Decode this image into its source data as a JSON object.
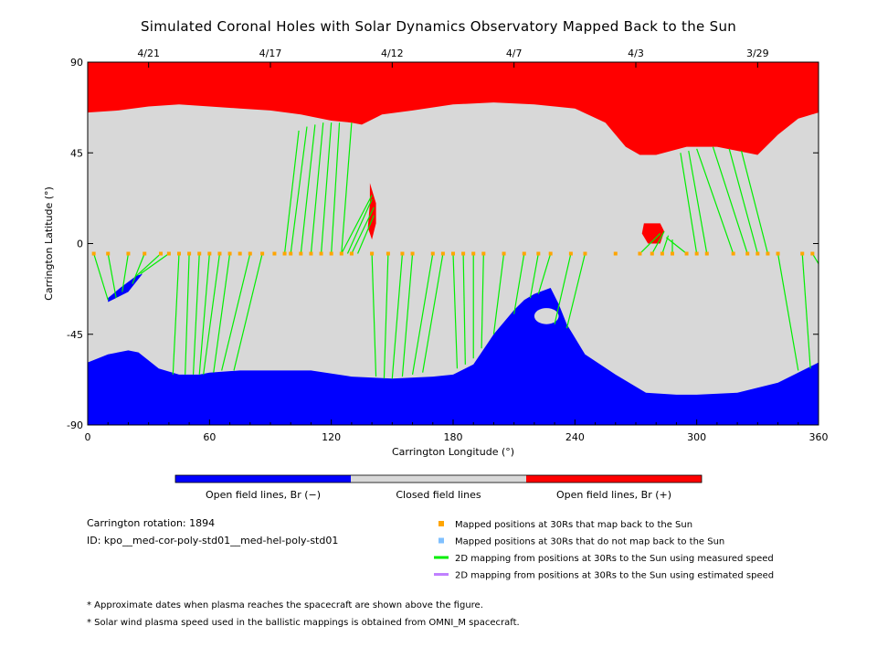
{
  "title": "Simulated Coronal Holes with Solar Dynamics Observatory Mapped Back to the Sun",
  "chart_data": {
    "type": "map",
    "xlabel": "Carrington Longitude (°)",
    "ylabel": "Carrington Latitude (°)",
    "xlim": [
      0,
      360
    ],
    "ylim": [
      -90,
      90
    ],
    "x_ticks": [
      "0",
      "60",
      "120",
      "180",
      "240",
      "300",
      "360"
    ],
    "y_ticks": [
      "90",
      "45",
      "0",
      "-45",
      "-90"
    ],
    "top_dates": [
      {
        "label": "4/21",
        "lon": 30
      },
      {
        "label": "4/17",
        "lon": 90
      },
      {
        "label": "4/12",
        "lon": 150
      },
      {
        "label": "4/7",
        "lon": 210
      },
      {
        "label": "4/3",
        "lon": 270
      },
      {
        "label": "3/29",
        "lon": 330
      }
    ],
    "north_boundary": [
      [
        0,
        65
      ],
      [
        15,
        66
      ],
      [
        30,
        68
      ],
      [
        45,
        69
      ],
      [
        60,
        68
      ],
      [
        75,
        67
      ],
      [
        90,
        66
      ],
      [
        105,
        64
      ],
      [
        120,
        61
      ],
      [
        130,
        60
      ],
      [
        135,
        59
      ],
      [
        145,
        64
      ],
      [
        160,
        66
      ],
      [
        180,
        69
      ],
      [
        200,
        70
      ],
      [
        220,
        69
      ],
      [
        240,
        67
      ],
      [
        255,
        60
      ],
      [
        265,
        48
      ],
      [
        272,
        44
      ],
      [
        280,
        44
      ],
      [
        295,
        48
      ],
      [
        310,
        48
      ],
      [
        325,
        45
      ],
      [
        330,
        44
      ],
      [
        340,
        54
      ],
      [
        350,
        62
      ],
      [
        360,
        65
      ]
    ],
    "south_boundary": [
      [
        0,
        -59
      ],
      [
        10,
        -55
      ],
      [
        20,
        -53
      ],
      [
        25,
        -54
      ],
      [
        35,
        -62
      ],
      [
        45,
        -65
      ],
      [
        55,
        -65
      ],
      [
        60,
        -64
      ],
      [
        75,
        -63
      ],
      [
        90,
        -63
      ],
      [
        110,
        -63
      ],
      [
        130,
        -66
      ],
      [
        150,
        -67
      ],
      [
        170,
        -66
      ],
      [
        180,
        -65
      ],
      [
        190,
        -60
      ],
      [
        200,
        -45
      ],
      [
        210,
        -33
      ],
      [
        215,
        -28
      ],
      [
        220,
        -25
      ],
      [
        228,
        -22
      ],
      [
        232,
        -30
      ],
      [
        236,
        -40
      ],
      [
        245,
        -55
      ],
      [
        260,
        -65
      ],
      [
        275,
        -74
      ],
      [
        290,
        -75
      ],
      [
        300,
        -75
      ],
      [
        320,
        -74
      ],
      [
        340,
        -69
      ],
      [
        360,
        -59
      ]
    ],
    "open_positive_islands": [
      {
        "points": [
          [
            139,
            30
          ],
          [
            142,
            20
          ],
          [
            142,
            10
          ],
          [
            140,
            2
          ],
          [
            138,
            8
          ],
          [
            139,
            20
          ]
        ]
      },
      {
        "points": [
          [
            274,
            10
          ],
          [
            282,
            10
          ],
          [
            284,
            6
          ],
          [
            282,
            0
          ],
          [
            276,
            0
          ],
          [
            273,
            5
          ]
        ]
      }
    ],
    "open_negative_islands": [
      {
        "points": [
          [
            10,
            -29
          ],
          [
            20,
            -24
          ],
          [
            27,
            -15
          ],
          [
            24,
            -16
          ],
          [
            16,
            -22
          ],
          [
            10,
            -27
          ]
        ]
      }
    ],
    "closed_holes_in_south": [
      {
        "center": [
          226,
          -36
        ],
        "rx": 6,
        "ry": 4
      }
    ],
    "mapped_30rs": {
      "longitudes": [
        3,
        10,
        20,
        28,
        36,
        40,
        45,
        50,
        55,
        60,
        65,
        70,
        75,
        80,
        86,
        92,
        97,
        100,
        105,
        110,
        115,
        120,
        125,
        130,
        140,
        148,
        155,
        160,
        170,
        175,
        180,
        185,
        190,
        195,
        205,
        215,
        222,
        228,
        238,
        245,
        260,
        272,
        278,
        283,
        288,
        295,
        300,
        305,
        318,
        325,
        330,
        335,
        340,
        352,
        357
      ],
      "latitude": -5,
      "color": "#ffa500"
    },
    "measured_speed_mappings": [
      [
        [
          3,
          -5
        ],
        [
          10,
          -28
        ]
      ],
      [
        [
          10,
          -5
        ],
        [
          14,
          -27
        ]
      ],
      [
        [
          20,
          -5
        ],
        [
          17,
          -24
        ]
      ],
      [
        [
          28,
          -5
        ],
        [
          22,
          -20
        ]
      ],
      [
        [
          36,
          -5
        ],
        [
          24,
          -16
        ]
      ],
      [
        [
          40,
          -5
        ],
        [
          26,
          -15
        ]
      ],
      [
        [
          45,
          -5
        ],
        [
          42,
          -65
        ]
      ],
      [
        [
          50,
          -5
        ],
        [
          48,
          -65
        ]
      ],
      [
        [
          55,
          -5
        ],
        [
          52,
          -65
        ]
      ],
      [
        [
          60,
          -5
        ],
        [
          55,
          -65
        ]
      ],
      [
        [
          65,
          -5
        ],
        [
          57,
          -65
        ]
      ],
      [
        [
          70,
          -5
        ],
        [
          62,
          -64
        ]
      ],
      [
        [
          80,
          -5
        ],
        [
          66,
          -63
        ]
      ],
      [
        [
          86,
          -5
        ],
        [
          72,
          -63
        ]
      ],
      [
        [
          97,
          -5
        ],
        [
          104,
          56
        ]
      ],
      [
        [
          100,
          -5
        ],
        [
          108,
          58
        ]
      ],
      [
        [
          105,
          -5
        ],
        [
          112,
          59
        ]
      ],
      [
        [
          110,
          -5
        ],
        [
          116,
          60
        ]
      ],
      [
        [
          115,
          -5
        ],
        [
          120,
          60
        ]
      ],
      [
        [
          120,
          -5
        ],
        [
          124,
          60
        ]
      ],
      [
        [
          125,
          -5
        ],
        [
          130,
          60
        ]
      ],
      [
        [
          125,
          -5
        ],
        [
          140,
          24
        ]
      ],
      [
        [
          128,
          -5
        ],
        [
          140,
          22
        ]
      ],
      [
        [
          130,
          -5
        ],
        [
          141,
          18
        ]
      ],
      [
        [
          133,
          -5
        ],
        [
          141,
          14
        ]
      ],
      [
        [
          140,
          -5
        ],
        [
          142,
          -66
        ]
      ],
      [
        [
          148,
          -5
        ],
        [
          146,
          -67
        ]
      ],
      [
        [
          155,
          -5
        ],
        [
          150,
          -67
        ]
      ],
      [
        [
          160,
          -5
        ],
        [
          155,
          -66
        ]
      ],
      [
        [
          170,
          -5
        ],
        [
          160,
          -65
        ]
      ],
      [
        [
          175,
          -5
        ],
        [
          165,
          -64
        ]
      ],
      [
        [
          180,
          -5
        ],
        [
          182,
          -62
        ]
      ],
      [
        [
          185,
          -5
        ],
        [
          186,
          -60
        ]
      ],
      [
        [
          190,
          -5
        ],
        [
          190,
          -57
        ]
      ],
      [
        [
          195,
          -5
        ],
        [
          194,
          -52
        ]
      ],
      [
        [
          205,
          -5
        ],
        [
          200,
          -45
        ]
      ],
      [
        [
          215,
          -5
        ],
        [
          210,
          -35
        ]
      ],
      [
        [
          222,
          -5
        ],
        [
          218,
          -27
        ]
      ],
      [
        [
          228,
          -5
        ],
        [
          222,
          -25
        ]
      ],
      [
        [
          238,
          -5
        ],
        [
          230,
          -40
        ]
      ],
      [
        [
          245,
          -5
        ],
        [
          236,
          -42
        ]
      ],
      [
        [
          272,
          -5
        ],
        [
          282,
          5
        ]
      ],
      [
        [
          278,
          -5
        ],
        [
          284,
          6
        ]
      ],
      [
        [
          283,
          -5
        ],
        [
          286,
          4
        ]
      ],
      [
        [
          288,
          -5
        ],
        [
          288,
          2
        ]
      ],
      [
        [
          295,
          -5
        ],
        [
          285,
          3
        ]
      ],
      [
        [
          300,
          -5
        ],
        [
          292,
          45
        ]
      ],
      [
        [
          305,
          -5
        ],
        [
          296,
          46
        ]
      ],
      [
        [
          318,
          -5
        ],
        [
          300,
          47
        ]
      ],
      [
        [
          325,
          -5
        ],
        [
          308,
          48
        ]
      ],
      [
        [
          330,
          -5
        ],
        [
          316,
          47
        ]
      ],
      [
        [
          335,
          -5
        ],
        [
          322,
          46
        ]
      ],
      [
        [
          340,
          -5
        ],
        [
          350,
          -63
        ]
      ],
      [
        [
          352,
          -5
        ],
        [
          356,
          -62
        ]
      ],
      [
        [
          357,
          -5
        ],
        [
          360,
          -10
        ]
      ]
    ],
    "colorbar": [
      {
        "label": "Open field lines, Br (−)",
        "color": "#0000ff"
      },
      {
        "label": "Closed field lines",
        "color": "#d8d8d8"
      },
      {
        "label": "Open field lines, Br (+)",
        "color": "#ff0000"
      }
    ],
    "colors": {
      "open_negative": "#0000ff",
      "closed": "#d8d8d8",
      "open_positive": "#ff0000",
      "measured": "#00ee00",
      "estimated": "#c080ff",
      "nomap": "#80c0ff",
      "mapped": "#ffa500"
    }
  },
  "info": {
    "rotation": "Carrington rotation: 1894",
    "id": "ID: kpo__med-cor-poly-std01__med-hel-poly-std01"
  },
  "legend": {
    "mapped": "Mapped positions at 30Rs that map back to the Sun",
    "nomap": "Mapped positions at 30Rs that do not map back to the Sun",
    "measured": "2D mapping from positions at 30Rs to the Sun using measured speed",
    "estimated": "2D mapping from positions at 30Rs to the Sun using estimated speed"
  },
  "footnotes": [
    "* Approximate dates when plasma reaches the spacecraft are shown above the figure.",
    "* Solar wind plasma speed used in the ballistic mappings is obtained from OMNI_M spacecraft."
  ]
}
